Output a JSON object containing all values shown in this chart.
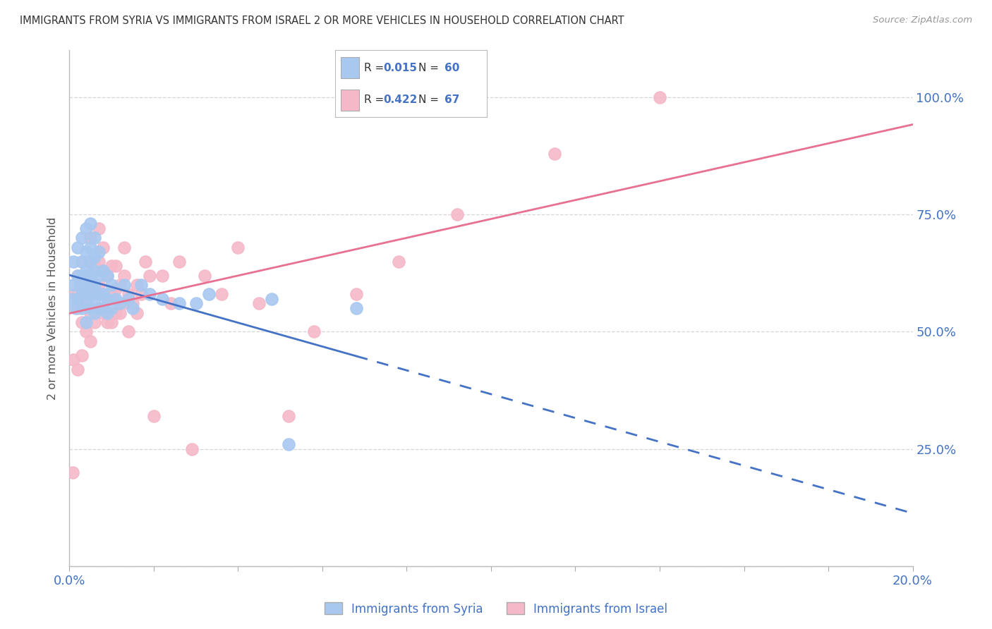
{
  "title": "IMMIGRANTS FROM SYRIA VS IMMIGRANTS FROM ISRAEL 2 OR MORE VEHICLES IN HOUSEHOLD CORRELATION CHART",
  "source": "Source: ZipAtlas.com",
  "ylabel": "2 or more Vehicles in Household",
  "xlim": [
    0.0,
    0.2
  ],
  "ylim": [
    0.0,
    1.1
  ],
  "syria_R": 0.015,
  "syria_N": 60,
  "israel_R": 0.422,
  "israel_N": 67,
  "syria_color": "#A8C8F0",
  "israel_color": "#F5B8C8",
  "trend_syria_color": "#4472C4",
  "trend_israel_color": "#E87090",
  "background_color": "#FFFFFF",
  "grid_color": "#CCCCCC",
  "tick_label_color": "#4472C4",
  "title_color": "#333333",
  "source_color": "#999999",
  "ylabel_color": "#555555",
  "syria_x": [
    0.0008,
    0.001,
    0.001,
    0.0015,
    0.002,
    0.002,
    0.002,
    0.0025,
    0.003,
    0.003,
    0.003,
    0.003,
    0.003,
    0.0035,
    0.004,
    0.004,
    0.004,
    0.004,
    0.004,
    0.004,
    0.0045,
    0.005,
    0.005,
    0.005,
    0.005,
    0.005,
    0.005,
    0.0055,
    0.006,
    0.006,
    0.006,
    0.006,
    0.006,
    0.006,
    0.007,
    0.007,
    0.007,
    0.007,
    0.008,
    0.008,
    0.008,
    0.009,
    0.009,
    0.009,
    0.01,
    0.01,
    0.011,
    0.012,
    0.013,
    0.014,
    0.015,
    0.017,
    0.019,
    0.022,
    0.026,
    0.03,
    0.033,
    0.048,
    0.052,
    0.068
  ],
  "syria_y": [
    0.57,
    0.6,
    0.65,
    0.55,
    0.57,
    0.62,
    0.68,
    0.6,
    0.55,
    0.58,
    0.62,
    0.65,
    0.7,
    0.58,
    0.52,
    0.56,
    0.6,
    0.63,
    0.67,
    0.72,
    0.62,
    0.55,
    0.58,
    0.62,
    0.65,
    0.68,
    0.73,
    0.6,
    0.54,
    0.57,
    0.6,
    0.63,
    0.66,
    0.7,
    0.55,
    0.58,
    0.62,
    0.67,
    0.55,
    0.58,
    0.63,
    0.54,
    0.57,
    0.62,
    0.55,
    0.6,
    0.57,
    0.56,
    0.6,
    0.57,
    0.55,
    0.6,
    0.58,
    0.57,
    0.56,
    0.56,
    0.58,
    0.57,
    0.26,
    0.55
  ],
  "israel_x": [
    0.0008,
    0.001,
    0.0015,
    0.002,
    0.002,
    0.002,
    0.003,
    0.003,
    0.003,
    0.003,
    0.004,
    0.004,
    0.004,
    0.005,
    0.005,
    0.005,
    0.005,
    0.005,
    0.006,
    0.006,
    0.006,
    0.007,
    0.007,
    0.007,
    0.007,
    0.008,
    0.008,
    0.008,
    0.008,
    0.009,
    0.009,
    0.009,
    0.01,
    0.01,
    0.01,
    0.011,
    0.011,
    0.011,
    0.012,
    0.012,
    0.013,
    0.013,
    0.013,
    0.014,
    0.014,
    0.015,
    0.016,
    0.016,
    0.017,
    0.018,
    0.019,
    0.02,
    0.022,
    0.024,
    0.026,
    0.029,
    0.032,
    0.036,
    0.04,
    0.045,
    0.052,
    0.058,
    0.068,
    0.078,
    0.092,
    0.115,
    0.14
  ],
  "israel_y": [
    0.2,
    0.44,
    0.58,
    0.42,
    0.55,
    0.62,
    0.45,
    0.52,
    0.58,
    0.65,
    0.5,
    0.56,
    0.62,
    0.48,
    0.54,
    0.6,
    0.65,
    0.7,
    0.52,
    0.58,
    0.64,
    0.55,
    0.6,
    0.65,
    0.72,
    0.54,
    0.58,
    0.63,
    0.68,
    0.52,
    0.57,
    0.62,
    0.52,
    0.58,
    0.64,
    0.54,
    0.59,
    0.64,
    0.54,
    0.6,
    0.56,
    0.62,
    0.68,
    0.5,
    0.58,
    0.56,
    0.54,
    0.6,
    0.58,
    0.65,
    0.62,
    0.32,
    0.62,
    0.56,
    0.65,
    0.25,
    0.62,
    0.58,
    0.68,
    0.56,
    0.32,
    0.5,
    0.58,
    0.65,
    0.75,
    0.88,
    1.0
  ]
}
